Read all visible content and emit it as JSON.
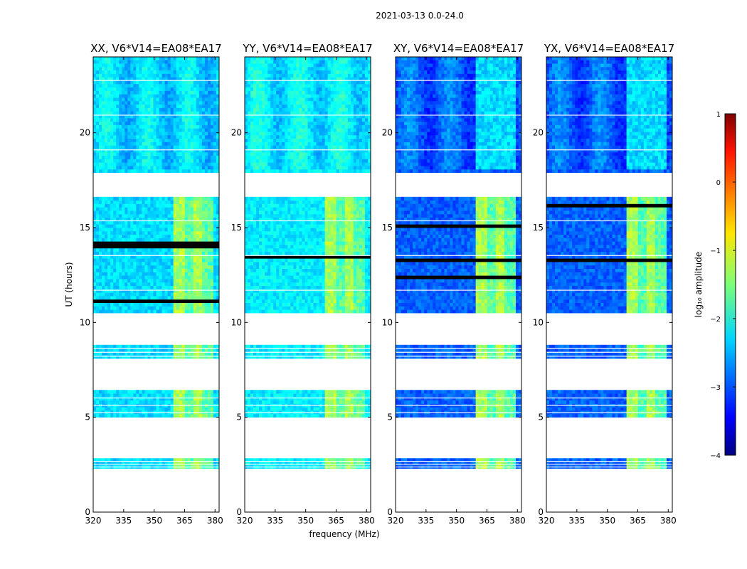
{
  "figure": {
    "suptitle": "2021-03-13 0.0-24.0"
  },
  "chart_data": {
    "type": "heatmap",
    "xlabel": "frequency (MHz)",
    "ylabel": "UT (hours)",
    "xlim": [
      320,
      382
    ],
    "ylim": [
      0,
      24
    ],
    "xticks": [
      320,
      335,
      350,
      365,
      380
    ],
    "yticks": [
      0,
      5,
      10,
      15,
      20
    ],
    "panels": [
      {
        "title": "XX, V6*V14=EA08*EA17",
        "base_level": -2.3
      },
      {
        "title": "YY, V6*V14=EA08*EA17",
        "base_level": -2.2
      },
      {
        "title": "XY, V6*V14=EA08*EA17",
        "base_level": -2.9
      },
      {
        "title": "YX, V6*V14=EA08*EA17",
        "base_level": -2.9
      }
    ],
    "data_blocks_hours": [
      [
        2.3,
        2.8
      ],
      [
        5.0,
        6.3
      ],
      [
        8.1,
        8.8
      ],
      [
        10.5,
        16.6
      ],
      [
        17.9,
        24.0
      ]
    ],
    "rfi_band_mhz": [
      360,
      379
    ],
    "colorbar": {
      "label": "log₁₀ amplitude",
      "range": [
        -4,
        1
      ],
      "ticks": [
        1,
        0,
        -1,
        -2,
        -3,
        -4
      ],
      "colormap": "jet"
    },
    "colors": {
      "grid_gap": "#ffffff",
      "dark_row": "#000000"
    }
  }
}
